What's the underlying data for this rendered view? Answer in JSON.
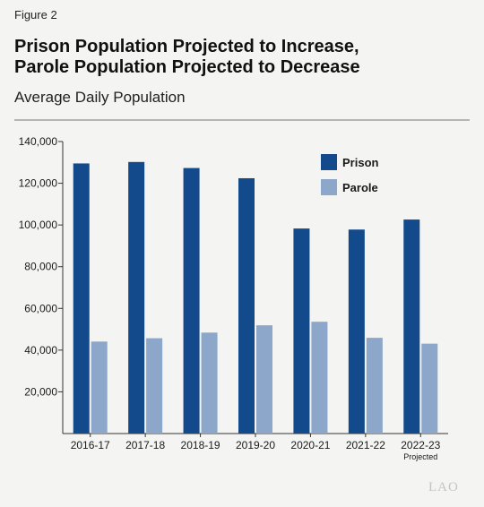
{
  "figure_label": "Figure 2",
  "title_lines": [
    "Prison Population Projected to Increase,",
    "Parole Population Projected to Decrease"
  ],
  "subtitle": "Average Daily Population",
  "logo_text": "LAO",
  "colors": {
    "prison": "#124a8c",
    "parole": "#8ca7c9",
    "axis": "#333333",
    "rule": "#b5b5b5"
  },
  "chart_data": {
    "type": "bar",
    "categories": [
      "2016-17",
      "2017-18",
      "2018-19",
      "2019-20",
      "2020-21",
      "2021-22",
      "2022-23"
    ],
    "category_sublabels": [
      "",
      "",
      "",
      "",
      "",
      "",
      "Projected"
    ],
    "series": [
      {
        "name": "Prison",
        "values": [
          129500,
          130200,
          127300,
          122400,
          98300,
          97800,
          102600
        ]
      },
      {
        "name": "Parole",
        "values": [
          44100,
          45700,
          48400,
          51900,
          53600,
          45900,
          43100
        ]
      }
    ],
    "yticks": [
      20000,
      40000,
      60000,
      80000,
      100000,
      120000,
      140000
    ],
    "ytick_labels": [
      "20,000",
      "40,000",
      "60,000",
      "80,000",
      "100,000",
      "120,000",
      "140,000"
    ],
    "ylim": [
      0,
      140000
    ],
    "xlabel": "",
    "ylabel": "",
    "grid": false,
    "legend_position": "top-right"
  }
}
